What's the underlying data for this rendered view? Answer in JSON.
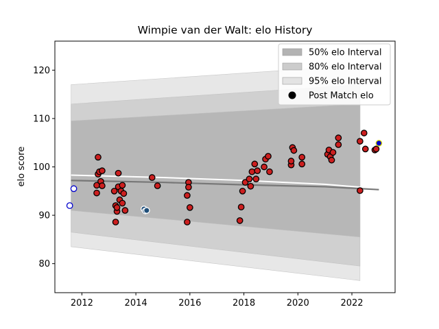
{
  "chart_data": {
    "type": "scatter",
    "title": "Wimpie van der Walt: elo History",
    "xlabel": "",
    "ylabel": "elo score",
    "xlim": [
      2011.0,
      2023.6
    ],
    "ylim": [
      74,
      126
    ],
    "x_ticks": [
      2012,
      2014,
      2016,
      2018,
      2020,
      2022
    ],
    "y_ticks": [
      80,
      90,
      100,
      110,
      120
    ],
    "grid": false,
    "legend_placement": "top-right",
    "legend": [
      {
        "label": "50% elo Interval",
        "color": "#b3b3b3"
      },
      {
        "label": "80% elo Interval",
        "color": "#cccccc"
      },
      {
        "label": "95% elo Interval",
        "color": "#e3e3e3"
      },
      {
        "label": "Post Match elo",
        "color": "#000000"
      }
    ],
    "bands": {
      "x": [
        2011.6,
        2022.3
      ],
      "p95": {
        "lower": [
          83.5,
          76.5
        ],
        "upper": [
          117.0,
          121.0
        ]
      },
      "p80": {
        "lower": [
          86.5,
          79.5
        ],
        "upper": [
          113.0,
          117.0
        ]
      },
      "p50": {
        "lower": [
          91.0,
          85.5
        ],
        "upper": [
          109.5,
          113.0
        ]
      }
    },
    "rating_lines": [
      {
        "x": [
          2011.6,
          2015.0,
          2018.0,
          2021.0,
          2023.0
        ],
        "y": [
          98.3,
          97.8,
          97.2,
          96.4,
          95.5
        ]
      },
      {
        "x": [
          2011.6,
          2015.0,
          2018.0,
          2021.0,
          2023.0
        ],
        "y": [
          97.2,
          96.8,
          96.3,
          95.9,
          95.3
        ]
      }
    ],
    "series": [
      {
        "fill": "#cc1f1f",
        "stroke": "#000000",
        "points": [
          [
            2012.55,
            96.2
          ],
          [
            2012.55,
            94.6
          ],
          [
            2012.6,
            98.5
          ],
          [
            2012.6,
            102.0
          ],
          [
            2012.65,
            99.0
          ],
          [
            2012.7,
            97.0
          ],
          [
            2012.75,
            96.1
          ],
          [
            2012.75,
            99.2
          ],
          [
            2013.2,
            95.0
          ],
          [
            2013.25,
            92.0
          ],
          [
            2013.25,
            88.6
          ],
          [
            2013.3,
            90.8
          ],
          [
            2013.3,
            91.6
          ],
          [
            2013.35,
            98.7
          ],
          [
            2013.35,
            95.9
          ],
          [
            2013.4,
            93.2
          ],
          [
            2013.45,
            95.0
          ],
          [
            2013.5,
            92.5
          ],
          [
            2013.5,
            96.2
          ],
          [
            2013.55,
            94.5
          ],
          [
            2013.6,
            91.0
          ],
          [
            2014.6,
            97.8
          ],
          [
            2014.8,
            96.1
          ],
          [
            2015.9,
            88.6
          ],
          [
            2015.9,
            94.1
          ],
          [
            2015.95,
            96.8
          ],
          [
            2015.95,
            95.8
          ],
          [
            2016.0,
            91.6
          ],
          [
            2017.85,
            88.9
          ],
          [
            2017.9,
            91.7
          ],
          [
            2017.95,
            95.0
          ],
          [
            2018.05,
            96.8
          ],
          [
            2018.2,
            97.5
          ],
          [
            2018.25,
            96.0
          ],
          [
            2018.3,
            99.0
          ],
          [
            2018.4,
            100.6
          ],
          [
            2018.45,
            97.5
          ],
          [
            2018.5,
            99.2
          ],
          [
            2018.75,
            100.0
          ],
          [
            2018.8,
            101.6
          ],
          [
            2018.9,
            102.2
          ],
          [
            2018.95,
            99.0
          ],
          [
            2019.75,
            100.4
          ],
          [
            2019.75,
            101.2
          ],
          [
            2019.8,
            104.0
          ],
          [
            2019.85,
            103.4
          ],
          [
            2020.15,
            102.0
          ],
          [
            2020.15,
            100.6
          ],
          [
            2021.1,
            102.6
          ],
          [
            2021.15,
            103.5
          ],
          [
            2021.2,
            102.1
          ],
          [
            2021.25,
            101.4
          ],
          [
            2021.3,
            103.0
          ],
          [
            2021.5,
            106.0
          ],
          [
            2021.5,
            104.6
          ],
          [
            2022.3,
            105.3
          ],
          [
            2022.3,
            95.1
          ],
          [
            2022.45,
            107.0
          ],
          [
            2022.5,
            103.7
          ],
          [
            2022.85,
            103.5
          ],
          [
            2022.9,
            103.7
          ]
        ]
      },
      {
        "fill": "#ffffff",
        "stroke": "#0000cc",
        "points": [
          [
            2011.55,
            92.0
          ],
          [
            2011.7,
            95.5
          ]
        ]
      },
      {
        "fill": "#1f4e79",
        "stroke": "#ffffff",
        "points": [
          [
            2014.3,
            91.3
          ],
          [
            2014.35,
            90.9
          ],
          [
            2014.4,
            91.0
          ]
        ]
      },
      {
        "fill": "#0000cc",
        "stroke": "#dddd00",
        "points": [
          [
            2023.0,
            104.9
          ]
        ]
      }
    ]
  }
}
